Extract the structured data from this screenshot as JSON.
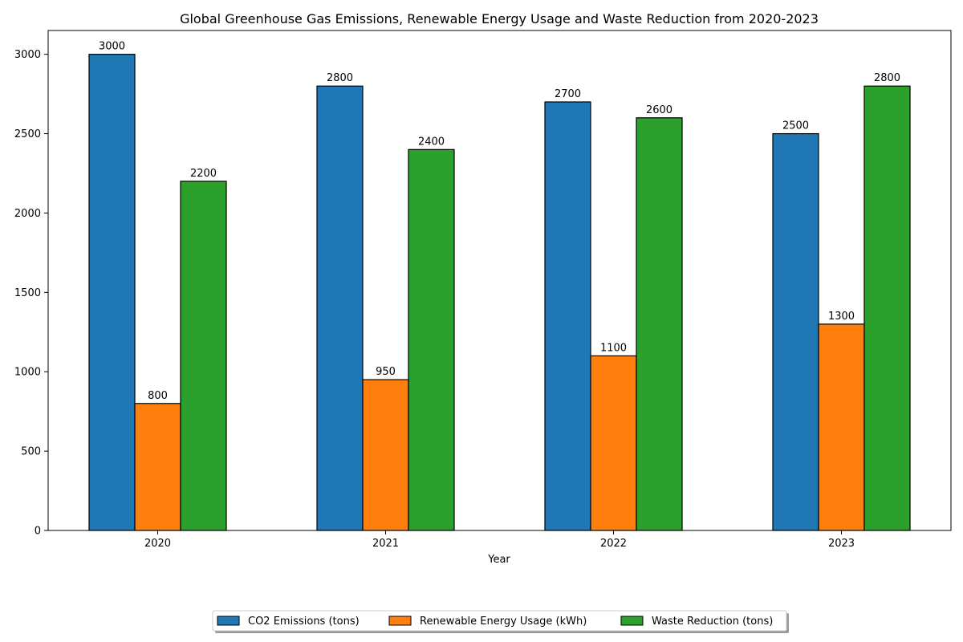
{
  "chart_data": {
    "type": "bar",
    "title": "Global Greenhouse Gas Emissions, Renewable Energy Usage and Waste Reduction from 2020-2023",
    "xlabel": "Year",
    "ylabel": "",
    "categories": [
      "2020",
      "2021",
      "2022",
      "2023"
    ],
    "series": [
      {
        "name": "CO2 Emissions (tons)",
        "values": [
          3000,
          2800,
          2700,
          2500
        ],
        "color": "#1f77b4"
      },
      {
        "name": "Renewable Energy Usage (kWh)",
        "values": [
          800,
          950,
          1100,
          1300
        ],
        "color": "#ff7f0e"
      },
      {
        "name": "Waste Reduction (tons)",
        "values": [
          2200,
          2400,
          2600,
          2800
        ],
        "color": "#2ca02c"
      }
    ],
    "ylim": [
      0,
      3150
    ],
    "yticks": [
      0,
      500,
      1000,
      1500,
      2000,
      2500,
      3000
    ],
    "grid": false,
    "legend_position": "bottom-center",
    "data_labels": true
  }
}
